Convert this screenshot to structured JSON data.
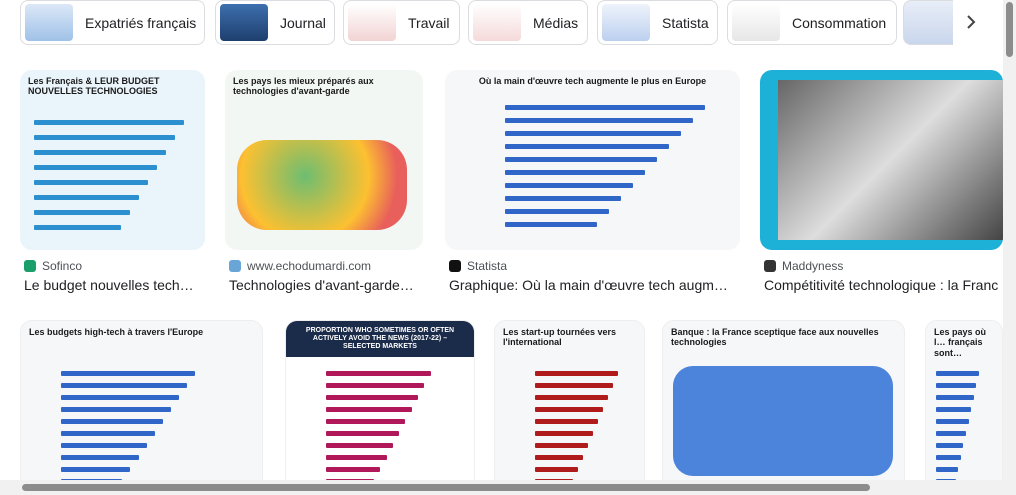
{
  "chips": [
    {
      "label": "Expatriés français"
    },
    {
      "label": "Journal"
    },
    {
      "label": "Travail"
    },
    {
      "label": "Médias"
    },
    {
      "label": "Statista"
    },
    {
      "label": "Consommation"
    }
  ],
  "results_row1": [
    {
      "source": "Sofinco",
      "title": "Le budget nouvelles tech…",
      "image_heading": "Les Français & LEUR BUDGET NOUVELLES TECHNOLOGIES"
    },
    {
      "source": "www.echodumardi.com",
      "title": "Technologies d'avant-garde…",
      "image_heading": "Les pays les mieux préparés aux technologies d'avant-garde"
    },
    {
      "source": "Statista",
      "title": "Graphique: Où la main d'œuvre tech augm…",
      "image_heading": "Où la main d'œuvre tech augmente le plus en Europe"
    },
    {
      "source": "Maddyness",
      "title": "Compétitivité technologique : la Franc"
    }
  ],
  "results_row2": [
    {
      "image_heading": "Les budgets high-tech à travers l'Europe"
    },
    {
      "image_heading": "PROPORTION WHO SOMETIMES OR OFTEN ACTIVELY AVOID THE NEWS (2017-22) – SELECTED MARKETS"
    },
    {
      "image_heading": "Les start-up tournées vers l'international"
    },
    {
      "image_heading": "Banque : la France sceptique face aux nouvelles technologies"
    },
    {
      "image_heading": "Les pays où l… français sont…"
    }
  ]
}
